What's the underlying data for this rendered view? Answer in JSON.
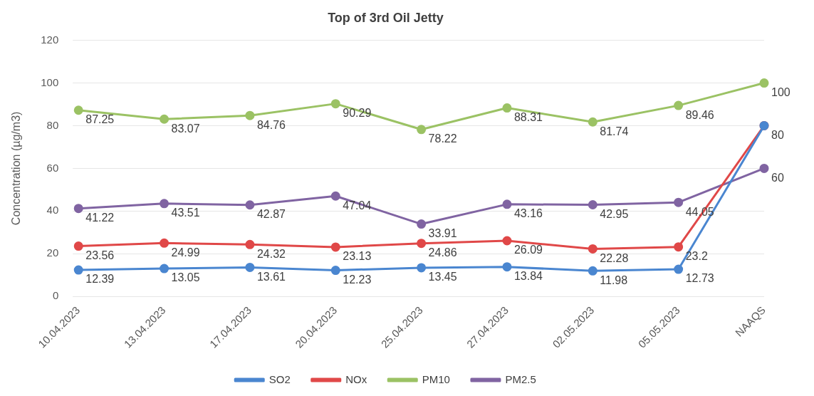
{
  "chart_data": {
    "type": "line",
    "title": "Top of 3rd Oil Jetty",
    "ylabel": "Concentration (µg/m3)",
    "categories": [
      "10.04.2023",
      "13.04.2023",
      "17.04.2023",
      "20.04.2023",
      "25.04.2023",
      "27.04.2023",
      "02.05.2023",
      "05.05.2023",
      "NAAQS"
    ],
    "series": [
      {
        "name": "SO2",
        "color": "#4a86d0",
        "values": [
          12.39,
          13.05,
          13.61,
          12.23,
          13.45,
          13.84,
          11.98,
          12.73,
          80
        ],
        "value_labels": [
          "12.39",
          "13.05",
          "13.61",
          "12.23",
          "13.45",
          "13.84",
          "11.98",
          "12.73",
          null
        ]
      },
      {
        "name": "NOx",
        "color": "#e04848",
        "values": [
          23.56,
          24.99,
          24.32,
          23.13,
          24.86,
          26.09,
          22.28,
          23.2,
          80
        ],
        "value_labels": [
          "23.56",
          "24.99",
          "24.32",
          "23.13",
          "24.86",
          "26.09",
          "22.28",
          "23.2",
          "80"
        ]
      },
      {
        "name": "PM10",
        "color": "#9bc264",
        "values": [
          87.25,
          83.07,
          84.76,
          90.29,
          78.22,
          88.31,
          81.74,
          89.46,
          100
        ],
        "value_labels": [
          "87.25",
          "83.07",
          "84.76",
          "90.29",
          "78.22",
          "88.31",
          "81.74",
          "89.46",
          "100"
        ]
      },
      {
        "name": "PM2.5",
        "color": "#8064a2",
        "values": [
          41.22,
          43.51,
          42.87,
          47.04,
          33.91,
          43.16,
          42.95,
          44.05,
          60
        ],
        "value_labels": [
          "41.22",
          "43.51",
          "42.87",
          "47.04",
          "33.91",
          "43.16",
          "42.95",
          "44.05",
          "60"
        ]
      }
    ],
    "ylim": [
      0,
      120
    ],
    "yticks": [
      0,
      20,
      40,
      60,
      80,
      100,
      120
    ],
    "grid": "y",
    "legend": "bottom",
    "marker": "circle",
    "line_style": "solid"
  }
}
